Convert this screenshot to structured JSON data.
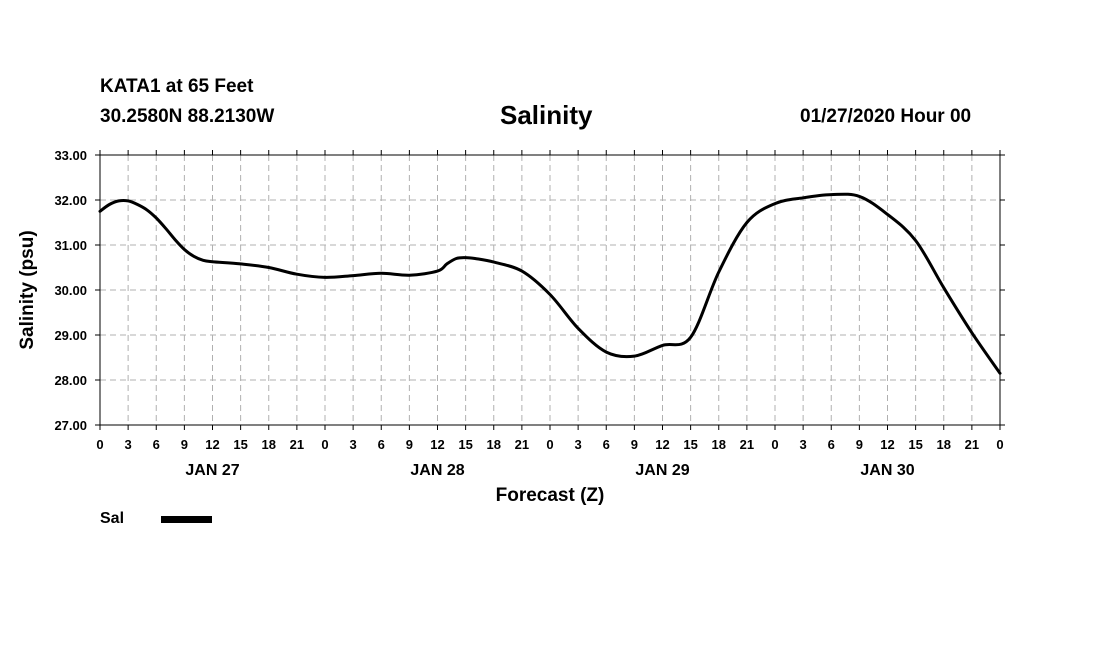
{
  "header": {
    "station": "KATA1 at 65 Feet",
    "coords": "30.2580N 88.2130W",
    "title": "Salinity",
    "stamp": "01/27/2020 Hour 00"
  },
  "chart_data": {
    "type": "line",
    "title": "Salinity",
    "xlabel": "Forecast (Z)",
    "ylabel": "Salinity (psu)",
    "ylim": [
      27.0,
      33.0
    ],
    "xlim": [
      0,
      96
    ],
    "x_unit": "hours from 01/27/2020 00Z",
    "yticks": [
      "27.00",
      "28.00",
      "29.00",
      "30.00",
      "31.00",
      "32.00",
      "33.00"
    ],
    "xtick_labels": [
      "0",
      "3",
      "6",
      "9",
      "12",
      "15",
      "18",
      "21",
      "0",
      "3",
      "6",
      "9",
      "12",
      "15",
      "18",
      "21",
      "0",
      "3",
      "6",
      "9",
      "12",
      "15",
      "18",
      "21",
      "0",
      "3",
      "6",
      "9",
      "12",
      "15",
      "18",
      "21",
      "0"
    ],
    "day_labels": [
      "JAN 27",
      "JAN 28",
      "JAN 29",
      "JAN 30"
    ],
    "grid": true,
    "legend": "bottom-left",
    "series": [
      {
        "name": "Sal",
        "color": "#000000",
        "x": [
          0,
          1,
          2,
          3,
          4,
          5,
          6,
          7,
          8,
          9,
          10,
          11,
          12,
          15,
          18,
          21,
          24,
          27,
          30,
          33,
          36,
          37,
          38,
          39,
          40,
          42,
          45,
          48,
          51,
          54,
          57,
          60,
          63,
          66,
          69,
          72,
          75,
          78,
          81,
          84,
          87,
          90,
          93,
          96
        ],
        "values": [
          31.75,
          31.9,
          31.98,
          31.98,
          31.9,
          31.78,
          31.6,
          31.37,
          31.12,
          30.9,
          30.75,
          30.66,
          30.63,
          30.58,
          30.5,
          30.35,
          30.28,
          30.32,
          30.37,
          30.33,
          30.42,
          30.58,
          30.7,
          30.72,
          30.7,
          30.62,
          30.42,
          29.9,
          29.15,
          28.62,
          28.53,
          28.77,
          28.95,
          30.4,
          31.5,
          31.92,
          32.05,
          32.12,
          32.08,
          31.68,
          31.1,
          30.05,
          29.05,
          28.15
        ]
      }
    ]
  },
  "legend": {
    "label": "Sal",
    "color": "#000000"
  }
}
